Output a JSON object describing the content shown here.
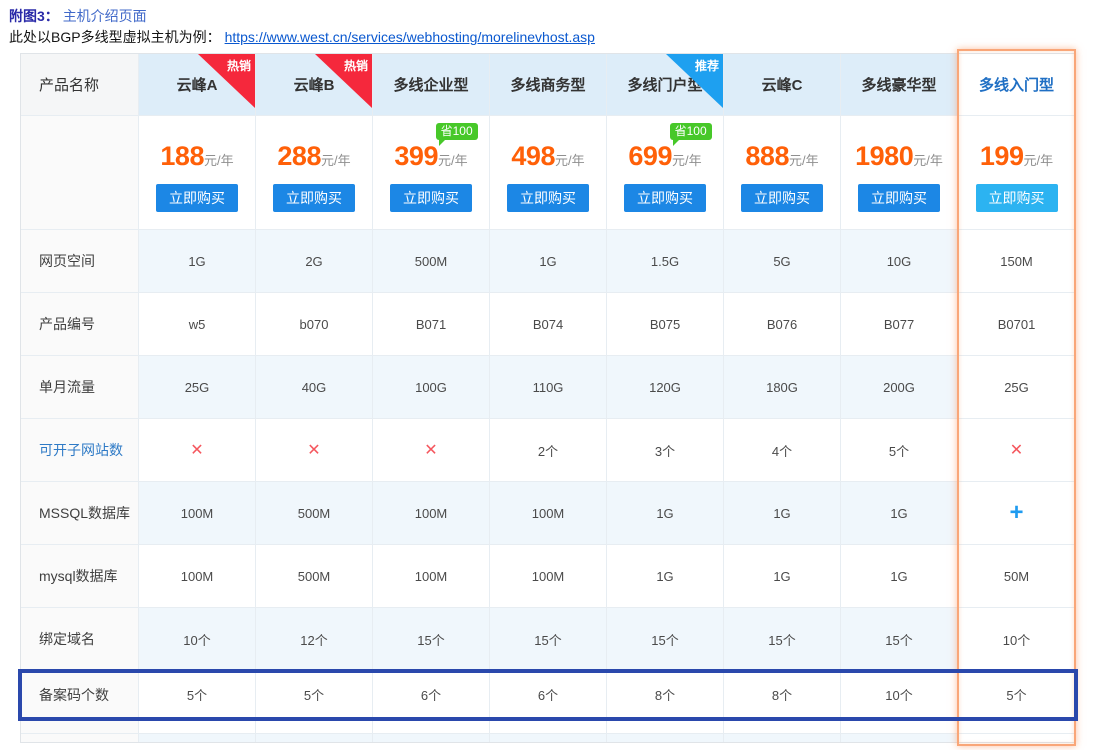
{
  "caption": {
    "figure_label": "附图3：",
    "figure_title": "主机介绍页面",
    "intro": "此处以BGP多线型虚拟主机为例：",
    "link": "https://www.west.cn/services/webhosting/morelinevhost.asp"
  },
  "table": {
    "corner_label": "产品名称",
    "price_unit": "元/年",
    "buy_label": "立即购买",
    "products": [
      {
        "name": "云峰A",
        "ribbon": "热销",
        "ribbon_color": "#f5283c",
        "price": "188"
      },
      {
        "name": "云峰B",
        "ribbon": "热销",
        "ribbon_color": "#f5283c",
        "price": "288"
      },
      {
        "name": "多线企业型",
        "badge": "省100",
        "price": "399"
      },
      {
        "name": "多线商务型",
        "price": "498"
      },
      {
        "name": "多线门户型",
        "ribbon": "推荐",
        "ribbon_color": "#1ea0f0",
        "badge": "省100",
        "price": "699"
      },
      {
        "name": "云峰C",
        "price": "888"
      },
      {
        "name": "多线豪华型",
        "price": "1980"
      },
      {
        "name": "多线入门型",
        "highlighted": true,
        "price": "199"
      }
    ],
    "rows": [
      {
        "label": "网页空间",
        "values": [
          "1G",
          "2G",
          "500M",
          "1G",
          "1.5G",
          "5G",
          "10G",
          "150M"
        ]
      },
      {
        "label": "产品编号",
        "values": [
          "w5",
          "b070",
          "B071",
          "B074",
          "B075",
          "B076",
          "B077",
          "B0701"
        ]
      },
      {
        "label": "单月流量",
        "values": [
          "25G",
          "40G",
          "100G",
          "110G",
          "120G",
          "180G",
          "200G",
          "25G"
        ]
      },
      {
        "label": "可开子网站数",
        "is_link": true,
        "values": [
          "×",
          "×",
          "×",
          "2个",
          "3个",
          "4个",
          "5个",
          "×"
        ]
      },
      {
        "label": "MSSQL数据库",
        "values": [
          "100M",
          "500M",
          "100M",
          "100M",
          "1G",
          "1G",
          "1G",
          "+"
        ]
      },
      {
        "label": "mysql数据库",
        "values": [
          "100M",
          "500M",
          "100M",
          "100M",
          "1G",
          "1G",
          "1G",
          "50M"
        ]
      },
      {
        "label": "绑定域名",
        "values": [
          "10个",
          "12个",
          "15个",
          "15个",
          "15个",
          "15个",
          "15个",
          "10个"
        ]
      },
      {
        "label": "备案码个数",
        "highlighted": true,
        "values": [
          "5个",
          "5个",
          "6个",
          "6个",
          "8个",
          "8个",
          "10个",
          "5个"
        ]
      }
    ]
  },
  "icons": {
    "cross": "cross-icon",
    "plus": "plus-icon"
  },
  "colors": {
    "price_orange": "#ff6008",
    "buy_button_blue": "#1c87e5",
    "buy_button_light_blue": "#2cb3f1",
    "hot_ribbon_red": "#f5283c",
    "recommend_ribbon_blue": "#1ea0f0",
    "save_badge_green": "#47c829",
    "header_bg_blue": "#ddedf9",
    "stripe_bg_blue": "#f0f7fc",
    "highlight_row_border": "#2a48ac",
    "highlight_column_border": "#f9a678",
    "link_blue": "#0a58cf",
    "cross_red": "#f5575e",
    "plus_blue": "#1f9bf0"
  }
}
